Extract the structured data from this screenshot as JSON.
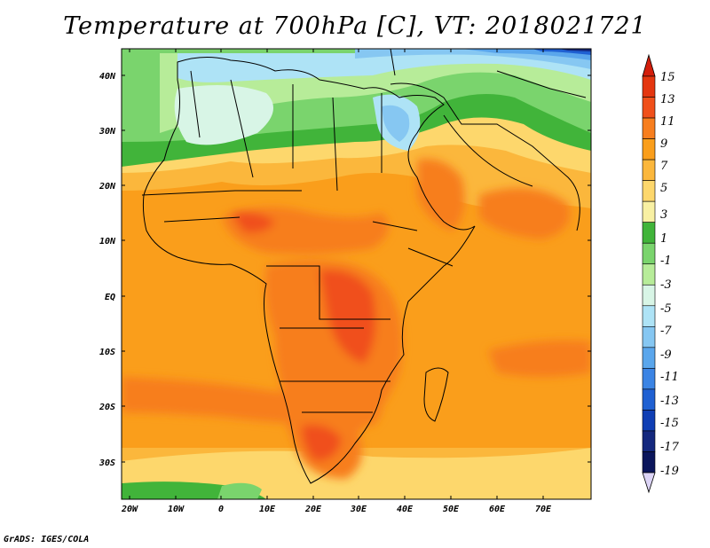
{
  "title": "Temperature at 700hPa [C], VT: 2018021721",
  "footer": "GrADS: IGES/COLA",
  "axes": {
    "lat_labels": [
      "40N",
      "30N",
      "20N",
      "10N",
      "EQ",
      "10S",
      "20S",
      "30S"
    ],
    "lon_labels": [
      "20W",
      "10W",
      "0",
      "10E",
      "20E",
      "30E",
      "40E",
      "50E",
      "60E",
      "70E"
    ]
  },
  "colorbar": {
    "labels": [
      "15",
      "13",
      "11",
      "9",
      "7",
      "5",
      "3",
      "1",
      "-1",
      "-3",
      "-5",
      "-7",
      "-9",
      "-11",
      "-13",
      "-15",
      "-17",
      "-19"
    ],
    "colors": [
      "#e4360f",
      "#f0501a",
      "#f77e1e",
      "#fa9e1b",
      "#fbb73c",
      "#fdd76c",
      "#f8f0a3",
      "#41b43a",
      "#7ad46d",
      "#b7ec99",
      "#d8f5e6",
      "#aee3f6",
      "#86c7f2",
      "#5aa6ec",
      "#3b84e4",
      "#1f60d2",
      "#0f3eb4",
      "#14287e",
      "#0b165c"
    ],
    "over_color": "#d31e0b",
    "under_color": "#dcd4f6"
  }
}
